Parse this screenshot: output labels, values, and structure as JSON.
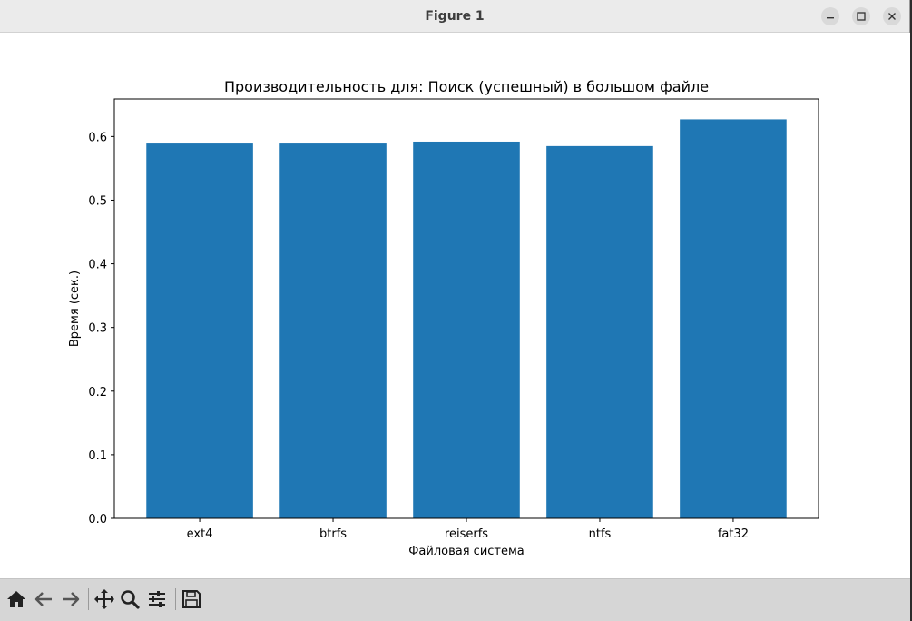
{
  "window": {
    "title": "Figure 1"
  },
  "toolbar": {
    "buttons": [
      "home-icon",
      "back-icon",
      "forward-icon",
      "pan-icon",
      "zoom-icon",
      "configure-subplots-icon",
      "save-icon"
    ]
  },
  "chart_data": {
    "type": "bar",
    "title": "Производительность для: Поиск (успешный) в большом файле",
    "xlabel": "Файловая система",
    "ylabel": "Время (сек.)",
    "categories": [
      "ext4",
      "btrfs",
      "reiserfs",
      "ntfs",
      "fat32"
    ],
    "values": [
      0.589,
      0.589,
      0.592,
      0.585,
      0.627
    ],
    "ylim": [
      0,
      0.659
    ],
    "yticks": [
      0.0,
      0.1,
      0.2,
      0.3,
      0.4,
      0.5,
      0.6
    ],
    "ytick_labels": [
      "0.0",
      "0.1",
      "0.2",
      "0.3",
      "0.4",
      "0.5",
      "0.6"
    ],
    "bar_color": "#1f77b4",
    "grid": false
  }
}
